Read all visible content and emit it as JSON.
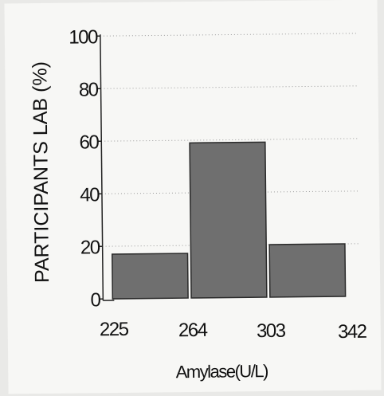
{
  "chart_data": {
    "type": "bar",
    "title": "",
    "ylabel": "PARTICIPANTS LAB (%)",
    "xlabel": "Amylase(U/L)",
    "x_ticks": [
      "225",
      "264",
      "303",
      "342"
    ],
    "y_ticks": [
      "0",
      "20",
      "40",
      "60",
      "80",
      "100"
    ],
    "ylim": [
      0,
      100
    ],
    "bins": [
      {
        "from": 225,
        "to": 264,
        "value": 17
      },
      {
        "from": 264,
        "to": 303,
        "value": 59
      },
      {
        "from": 303,
        "to": 342,
        "value": 20
      }
    ],
    "grid": "dotted horizontal",
    "bar_color": "#6f6f6f",
    "bar_edge_color": "#2a2a2a"
  }
}
